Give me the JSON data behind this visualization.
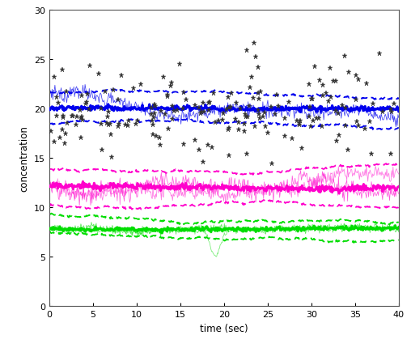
{
  "xlabel": "time (sec)",
  "ylabel": "concentration",
  "xlim": [
    0,
    40
  ],
  "ylim": [
    0,
    30
  ],
  "xticks": [
    0,
    5,
    10,
    15,
    20,
    25,
    30,
    35,
    40
  ],
  "yticks": [
    0,
    5,
    10,
    15,
    20,
    25,
    30
  ],
  "blue_mean": 20.0,
  "blue_upper": 21.5,
  "blue_lower": 18.5,
  "magenta_mean": 12.0,
  "magenta_upper": 13.5,
  "magenta_lower": 10.0,
  "green_mean": 7.8,
  "green_upper": 8.7,
  "green_lower": 6.8,
  "blue_color": "#0000EE",
  "magenta_color": "#FF00CC",
  "green_color": "#00DD00",
  "scatter_color": "#333333",
  "n_scatter": 200,
  "time_end": 40.0,
  "seed": 42
}
